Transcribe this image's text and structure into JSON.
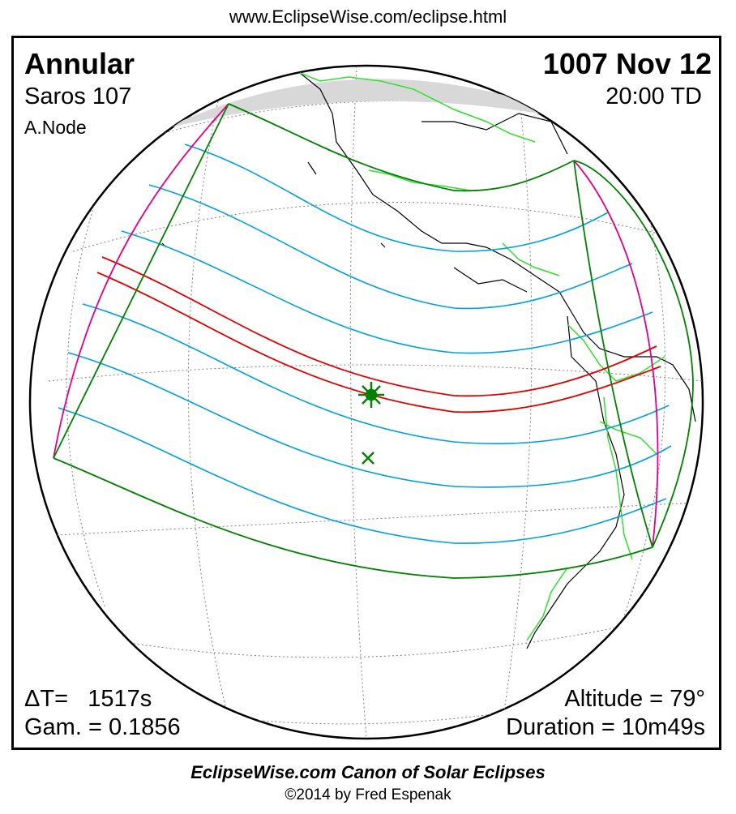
{
  "header": {
    "url": "www.EclipseWise.com/eclipse.html"
  },
  "eclipse": {
    "type": "Annular",
    "date": "1007 Nov 12",
    "saros": "Saros 107",
    "time": "20:00 TD",
    "node": "A.Node",
    "delta_t_label": "ΔT=",
    "delta_t_value": "1517s",
    "gamma": "Gam. = 0.1856",
    "altitude": "Altitude = 79°",
    "duration": "Duration = 10m49s"
  },
  "footer": {
    "title": "EclipseWise.com Canon of Solar Eclipses",
    "copyright": "©2014 by Fred Espenak"
  },
  "colors": {
    "frame": "#000000",
    "outer_limits": "#008000",
    "central_path": "#e00000",
    "magnitude_curves": "#00a0e0",
    "rise_set_curves": "#e0008c",
    "borders": "#30e030",
    "coastline": "#000000",
    "grid": "#808080"
  },
  "markers": [
    {
      "name": "greatest-eclipse-marker",
      "symbol": "star",
      "color": "#008000"
    },
    {
      "name": "sub-solar-point-marker",
      "symbol": "cross",
      "color": "#008000"
    }
  ]
}
